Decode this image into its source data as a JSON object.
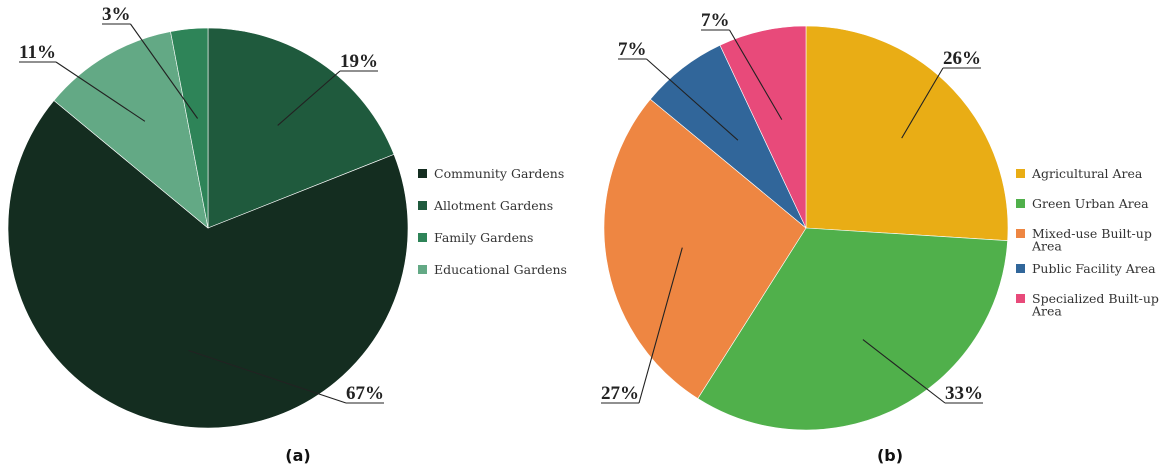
{
  "chart_data": [
    {
      "type": "pie",
      "caption": "(a)",
      "categories": [
        "Community Gardens",
        "Allotment Gardens",
        "Family Gardens",
        "Educational Gardens"
      ],
      "values": [
        67,
        19,
        3,
        11
      ],
      "value_labels": [
        "67%",
        "19%",
        "3%",
        "11%"
      ],
      "colors": [
        "#142d20",
        "#1f5a3d",
        "#2e8458",
        "#63a985"
      ],
      "legend_position": "right",
      "start_angle": "12 o'clock",
      "direction": "clockwise",
      "slice_order": [
        1,
        0,
        3,
        2
      ]
    },
    {
      "type": "pie",
      "caption": "(b)",
      "categories": [
        "Agricultural Area",
        "Green Urban Area",
        "Mixed-use Built-up Area",
        "Public Facility Area",
        "Specialized Built-up Area"
      ],
      "legend_lines": [
        [
          "Agricultural Area"
        ],
        [
          "Green Urban Area"
        ],
        [
          "Mixed-use Built-up",
          "Area"
        ],
        [
          "Public Facility Area"
        ],
        [
          "Specialized Built-up",
          "Area"
        ]
      ],
      "values": [
        26,
        33,
        27,
        7,
        7
      ],
      "value_labels": [
        "26%",
        "33%",
        "27%",
        "7%",
        "7%"
      ],
      "colors": [
        "#e9ad15",
        "#50b04b",
        "#ee8642",
        "#31669a",
        "#e84a7a"
      ],
      "legend_position": "right",
      "start_angle": "12 o'clock",
      "direction": "clockwise",
      "slice_order": [
        0,
        1,
        2,
        3,
        4
      ]
    }
  ]
}
